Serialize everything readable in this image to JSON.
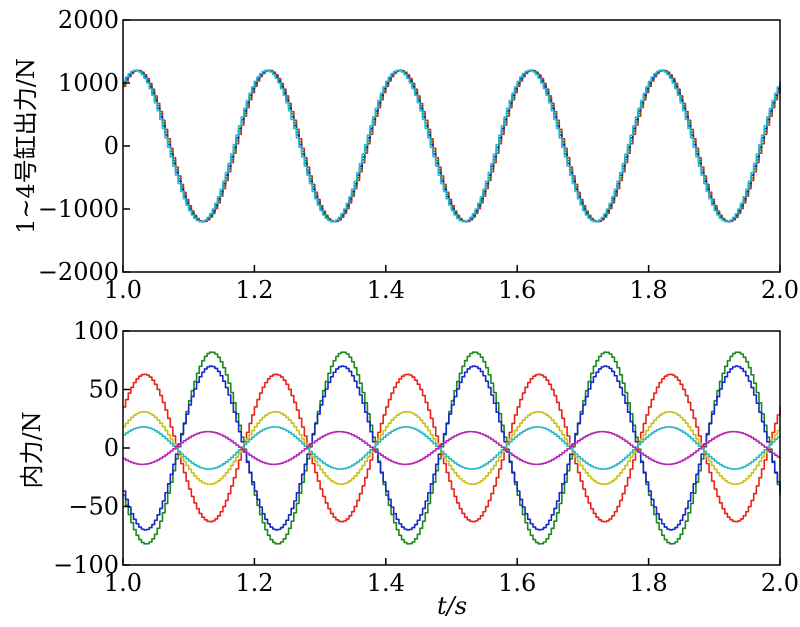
{
  "chart_data": [
    {
      "type": "line",
      "ylabel": "1~4号缸出力/N",
      "xlabel": "",
      "xlim": [
        1.0,
        2.0
      ],
      "ylim": [
        -2000,
        2000
      ],
      "x_ticks": [
        "1.0",
        "1.2",
        "1.4",
        "1.6",
        "1.8",
        "2.0"
      ],
      "y_ticks": [
        "2000",
        "1000",
        "0",
        "−1000",
        "−2000"
      ],
      "grid": false,
      "waveform": {
        "frequency_hz": 5,
        "amplitude": 1200,
        "value_at_t1": 1000,
        "step_shaped": true
      },
      "series": [
        {
          "color": "#e8241a"
        },
        {
          "color": "#1b8a1b"
        },
        {
          "color": "#1428c8"
        },
        {
          "color": "#2ab7c4"
        }
      ]
    },
    {
      "type": "line",
      "ylabel": "内力/N",
      "xlabel": "t/s",
      "xlim": [
        1.0,
        2.0
      ],
      "ylim": [
        -100,
        100
      ],
      "x_ticks": [
        "1.0",
        "1.2",
        "1.4",
        "1.6",
        "1.8",
        "2.0"
      ],
      "y_ticks": [
        "100",
        "50",
        "0",
        "−50",
        "−100"
      ],
      "grid": false,
      "waveform": {
        "frequency_hz": 5,
        "zero_crossing_t": 1.08,
        "step_shaped": true
      },
      "series": [
        {
          "color": "#1b8a1b",
          "amplitude": 82,
          "sign": 1
        },
        {
          "color": "#1428c8",
          "amplitude": 70,
          "sign": 1
        },
        {
          "color": "#e8241a",
          "amplitude": 63,
          "sign": -1
        },
        {
          "color": "#c8c21a",
          "amplitude": 31,
          "sign": -1
        },
        {
          "color": "#2ab7c4",
          "amplitude": 18,
          "sign": -1
        },
        {
          "color": "#b428b4",
          "amplitude": 14,
          "sign": 1
        }
      ]
    }
  ]
}
